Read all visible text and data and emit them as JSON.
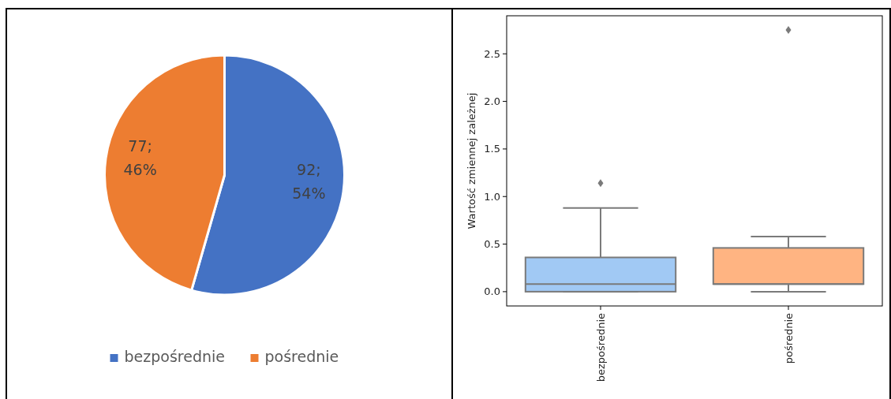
{
  "chart_data": [
    {
      "type": "pie",
      "categories": [
        "bezpośrednie",
        "pośrednie"
      ],
      "values": [
        92,
        77
      ],
      "colors": [
        "#4472c4",
        "#ed7d31"
      ],
      "value_labels": [
        "92;\n54%",
        "77;\n46%"
      ],
      "legend": "bottom"
    },
    {
      "type": "box",
      "categories": [
        "bezpośrednie",
        "pośrednie"
      ],
      "ylabel": "Wartość zmiennej zależnej",
      "ylim": [
        -0.15,
        2.9
      ],
      "yticks": [
        {
          "value": 0,
          "label": "0.0"
        },
        {
          "value": 0.5,
          "label": "0.5"
        },
        {
          "value": 1,
          "label": "1.0"
        },
        {
          "value": 1.5,
          "label": "1.5"
        },
        {
          "value": 2,
          "label": "2.0"
        },
        {
          "value": 2.5,
          "label": "2.5"
        }
      ],
      "colors": [
        "#a1c9f4",
        "#ffb482"
      ],
      "boxes": [
        {
          "low": 0,
          "q1": 0,
          "median": 0.08,
          "q3": 0.36,
          "high": 0.88,
          "outliers": [
            1.14
          ]
        },
        {
          "low": 0,
          "q1": 0.08,
          "median": 0.08,
          "q3": 0.46,
          "high": 0.58,
          "outliers": [
            2.75
          ]
        }
      ]
    }
  ]
}
